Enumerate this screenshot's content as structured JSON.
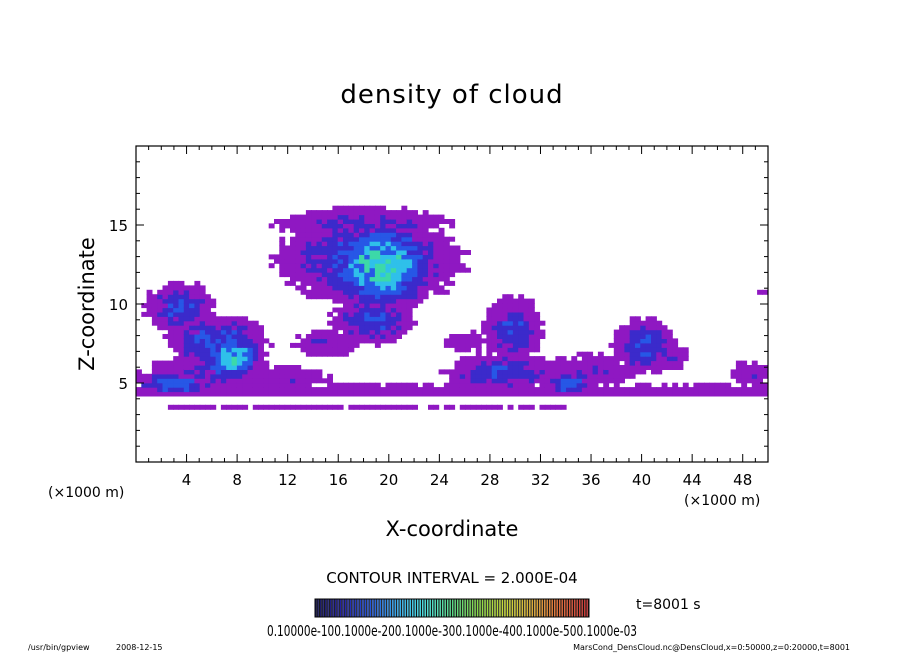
{
  "chart_data": {
    "type": "heatmap",
    "title": "density of cloud",
    "xlabel": "X-coordinate",
    "ylabel": "Z-coordinate",
    "x_unit": "(×1000 m)",
    "y_unit": "(×1000 m)",
    "xlim": [
      0,
      50
    ],
    "ylim": [
      0,
      20
    ],
    "x_ticks": [
      4,
      8,
      12,
      16,
      20,
      24,
      28,
      32,
      36,
      40,
      44,
      48
    ],
    "y_ticks": [
      5,
      10,
      15
    ],
    "contour_interval_label": "CONTOUR INTERVAL = 2.000E-04",
    "time_label": "t=8001 s",
    "colorbar_label": "0.10000e-100.1000e-200.1000e-300.1000e-400.1000e-500.1000e-03",
    "colorbar_colors": [
      "#1a1a5e",
      "#2222aa",
      "#2255dd",
      "#33aaee",
      "#44dddd",
      "#55dd88",
      "#88dd44",
      "#ccdd33",
      "#ddaa33",
      "#dd6633",
      "#cc3333"
    ],
    "fill_colors": {
      "outer": "#8f18c2",
      "mid": "#3b2acb",
      "inner": "#2757e6",
      "core": "#2fc0ea",
      "peak": "#3cd9a8"
    },
    "blobs": [
      {
        "x": 18.5,
        "z": 12.8,
        "rx": 8.0,
        "rz": 3.2,
        "level": 0.55
      },
      {
        "x": 18.0,
        "z": 15.1,
        "rx": 8.5,
        "rz": 1.3,
        "level": 0.4
      },
      {
        "x": 19.3,
        "z": 12.5,
        "rx": 4.5,
        "rz": 2.8,
        "level": 1.0
      },
      {
        "x": 18.8,
        "z": 9.0,
        "rx": 3.8,
        "rz": 1.8,
        "level": 0.5
      },
      {
        "x": 3.5,
        "z": 9.8,
        "rx": 3.2,
        "rz": 1.8,
        "level": 0.5
      },
      {
        "x": 6.5,
        "z": 7.6,
        "rx": 4.2,
        "rz": 1.8,
        "level": 0.6
      },
      {
        "x": 7.6,
        "z": 6.6,
        "rx": 2.4,
        "rz": 1.6,
        "level": 0.95
      },
      {
        "x": 3.0,
        "z": 5.0,
        "rx": 3.0,
        "rz": 0.8,
        "level": 0.7
      },
      {
        "x": 5.5,
        "z": 5.5,
        "rx": 6.5,
        "rz": 1.5,
        "level": 0.38
      },
      {
        "x": 12.0,
        "z": 5.3,
        "rx": 5.5,
        "rz": 1.1,
        "level": 0.28
      },
      {
        "x": 15.0,
        "z": 7.6,
        "rx": 4.0,
        "rz": 1.3,
        "level": 0.3
      },
      {
        "x": 26.0,
        "z": 7.6,
        "rx": 3.0,
        "rz": 1.0,
        "level": 0.28
      },
      {
        "x": 29.8,
        "z": 8.4,
        "rx": 2.8,
        "rz": 2.4,
        "level": 0.48
      },
      {
        "x": 29.0,
        "z": 5.7,
        "rx": 5.0,
        "rz": 1.3,
        "level": 0.52
      },
      {
        "x": 34.2,
        "z": 5.0,
        "rx": 2.2,
        "rz": 0.9,
        "level": 0.62
      },
      {
        "x": 36.0,
        "z": 5.8,
        "rx": 5.0,
        "rz": 1.5,
        "level": 0.3
      },
      {
        "x": 40.2,
        "z": 7.4,
        "rx": 2.8,
        "rz": 2.0,
        "level": 0.52
      },
      {
        "x": 41.5,
        "z": 6.6,
        "rx": 3.6,
        "rz": 1.2,
        "level": 0.32
      },
      {
        "x": 48.5,
        "z": 5.6,
        "rx": 2.5,
        "rz": 1.1,
        "level": 0.3
      },
      {
        "x": 49.5,
        "z": 10.7,
        "rx": 0.8,
        "rz": 0.4,
        "level": 0.3
      }
    ],
    "bands": [
      {
        "z": 4.5,
        "half_width": 0.45,
        "x_start": 0,
        "x_end": 50,
        "level": 0.26
      },
      {
        "z": 3.5,
        "half_width": 0.25,
        "x_start": 2,
        "x_end": 34,
        "level": 0.2
      }
    ]
  },
  "footer": {
    "program": "/usr/bin/gpview",
    "date": "2008-12-15",
    "source": "MarsCond_DensCloud.nc@DensCloud,x=0:50000,z=0:20000,t=8001"
  }
}
